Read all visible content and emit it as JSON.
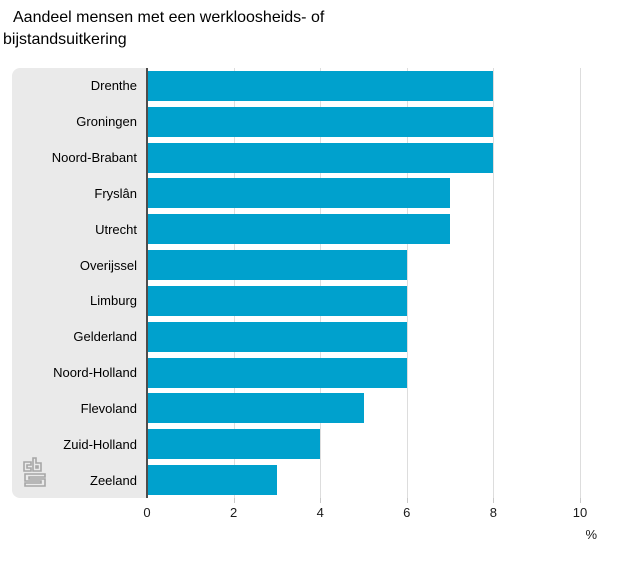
{
  "title": "Aandeel mensen met een werkloosheids- of bijstandsuitkering",
  "chart_data": {
    "type": "bar",
    "orientation": "horizontal",
    "categories": [
      "Drenthe",
      "Groningen",
      "Noord-Brabant",
      "Fryslân",
      "Utrecht",
      "Overijssel",
      "Limburg",
      "Gelderland",
      "Noord-Holland",
      "Flevoland",
      "Zuid-Holland",
      "Zeeland"
    ],
    "values": [
      8,
      8,
      8,
      7,
      7,
      6,
      6,
      6,
      6,
      5,
      4,
      3
    ],
    "xlabel": "%",
    "xlim": [
      0,
      10
    ],
    "xticks": [
      0,
      2,
      4,
      6,
      8,
      10
    ],
    "grid": true,
    "legend": false,
    "bar_color": "#00a1cd",
    "panel_color": "#eaeaea"
  },
  "logo": {
    "name": "cbs-logo",
    "color": "#a6a6a6"
  }
}
